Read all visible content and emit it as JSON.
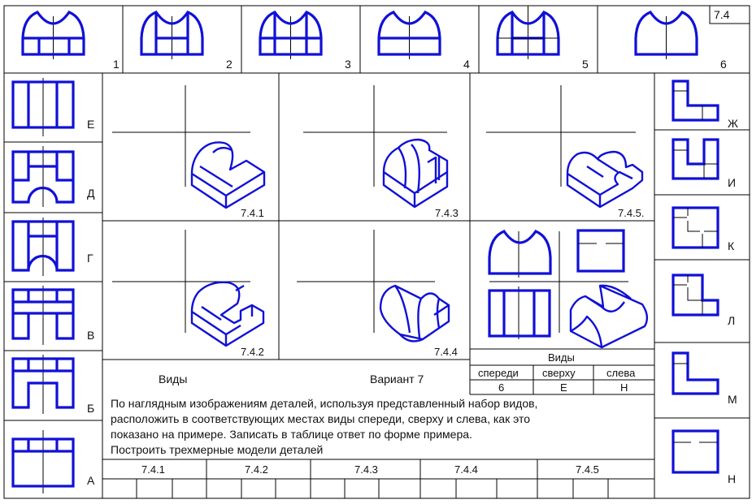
{
  "sheet_number": "7.4",
  "colors": {
    "drawing": "#1010d8",
    "lines": "#000000"
  },
  "top_views": [
    {
      "label": "1"
    },
    {
      "label": "2"
    },
    {
      "label": "3"
    },
    {
      "label": "4"
    },
    {
      "label": "5"
    },
    {
      "label": "6"
    }
  ],
  "left_views": [
    {
      "label": "Е"
    },
    {
      "label": "Д"
    },
    {
      "label": "Г"
    },
    {
      "label": "В"
    },
    {
      "label": "Б"
    },
    {
      "label": "А"
    }
  ],
  "right_views": [
    {
      "label": "Ж"
    },
    {
      "label": "И"
    },
    {
      "label": "К"
    },
    {
      "label": "Л"
    },
    {
      "label": "М"
    },
    {
      "label": "Н"
    }
  ],
  "parts": [
    {
      "label": "7.4.1"
    },
    {
      "label": "7.4.2"
    },
    {
      "label": "7.4.3"
    },
    {
      "label": "7.4.4"
    },
    {
      "label": "7.4.5."
    }
  ],
  "example": {
    "title": "Виды",
    "headers": [
      "спереди",
      "сверху",
      "слева"
    ],
    "values": [
      "6",
      "Е",
      "Н"
    ]
  },
  "task": {
    "views_label": "Виды",
    "variant": "Вариант 7",
    "lines": [
      "По наглядным изображениям деталей, используя представленный набор видов,",
      "расположить в соответствующих местах виды спереди, сверху и слева, как это",
      "показано на примере. Записать в таблице ответ по форме  примера.",
      "Построить трехмерные модели деталей"
    ]
  },
  "answer_table": {
    "headers": [
      "7.4.1",
      "7.4.2",
      "7.4.3",
      "7.4.4",
      "7.4.5"
    ],
    "cells": [
      "",
      "",
      "",
      "",
      "",
      "",
      "",
      "",
      "",
      "",
      "",
      "",
      "",
      "",
      ""
    ]
  }
}
